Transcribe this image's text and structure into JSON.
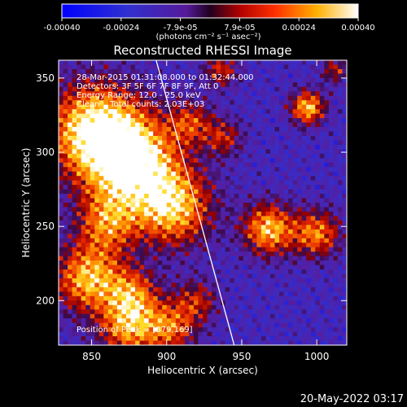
{
  "chart_data": {
    "type": "heatmap",
    "title": "Reconstructed RHESSI Image",
    "xlabel": "Heliocentric X (arcsec)",
    "ylabel": "Heliocentric Y (arcsec)",
    "xlim": [
      828,
      1020
    ],
    "ylim": [
      170,
      362
    ],
    "x_ticks": [
      850,
      900,
      950,
      1000
    ],
    "y_ticks": [
      200,
      250,
      300,
      350
    ],
    "colorbar": {
      "ticks": [
        "-0.00040",
        "-0.00024",
        "-7.9e-05",
        "7.9e-05",
        "0.00024",
        "0.00040"
      ],
      "unit_label": "(photons cm⁻² s⁻¹ asec⁻²)",
      "range": [
        -0.0004,
        0.0004
      ]
    },
    "annotations": [
      "28-Mar-2015 01:31:08.000 to 01:32:44.000",
      "Detectors: 3F 5F 6F 7F 8F 9F, Att 0",
      "Energy Range: 12.0 - 25.0 keV",
      "Clean    Total counts: 2.03E+03"
    ],
    "peak_label": "Position of Peak = [879,169]",
    "limb_line": [
      [
        893,
        362
      ],
      [
        945,
        170
      ]
    ],
    "emission_sources": [
      {
        "x": 852,
        "y": 315,
        "sigma": 22,
        "amp": 1.0
      },
      {
        "x": 878,
        "y": 292,
        "sigma": 22,
        "amp": 1.0
      },
      {
        "x": 905,
        "y": 262,
        "sigma": 18,
        "amp": 0.8
      },
      {
        "x": 860,
        "y": 252,
        "sigma": 14,
        "amp": 0.6
      },
      {
        "x": 848,
        "y": 215,
        "sigma": 16,
        "amp": 0.85
      },
      {
        "x": 878,
        "y": 205,
        "sigma": 12,
        "amp": 0.55
      },
      {
        "x": 875,
        "y": 182,
        "sigma": 14,
        "amp": 0.75
      },
      {
        "x": 903,
        "y": 182,
        "sigma": 12,
        "amp": 0.6
      },
      {
        "x": 920,
        "y": 200,
        "sigma": 10,
        "amp": 0.45
      },
      {
        "x": 968,
        "y": 248,
        "sigma": 12,
        "amp": 0.85
      },
      {
        "x": 1000,
        "y": 245,
        "sigma": 11,
        "amp": 0.7
      },
      {
        "x": 994,
        "y": 330,
        "sigma": 8,
        "amp": 0.85
      },
      {
        "x": 938,
        "y": 310,
        "sigma": 9,
        "amp": 0.45
      },
      {
        "x": 936,
        "y": 355,
        "sigma": 8,
        "amp": 0.5
      },
      {
        "x": 1012,
        "y": 355,
        "sigma": 6,
        "amp": 0.45
      },
      {
        "x": 916,
        "y": 320,
        "sigma": 10,
        "amp": 0.5
      }
    ]
  },
  "footer": {
    "date": "20-May-2022 03:17"
  },
  "colors": {
    "background": "#000000",
    "text": "#ffffff",
    "limb": "#ffffff"
  }
}
